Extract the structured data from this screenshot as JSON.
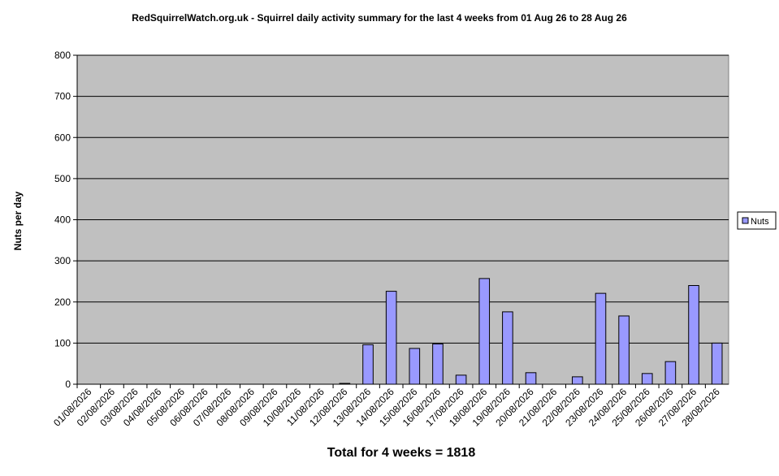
{
  "chart_data": {
    "type": "bar",
    "title": "RedSquirrelWatch.org.uk - Squirrel daily activity summary for the last 4 weeks from 01 Aug 26 to 28 Aug 26",
    "y_label": "Nuts per day",
    "footer": "Total for 4 weeks = 1818",
    "categories": [
      "01/08/2026",
      "02/08/2026",
      "03/08/2026",
      "04/08/2026",
      "05/08/2026",
      "06/08/2026",
      "07/08/2026",
      "08/08/2026",
      "09/08/2026",
      "10/08/2026",
      "11/08/2026",
      "12/08/2026",
      "13/08/2026",
      "14/08/2026",
      "15/08/2026",
      "16/08/2026",
      "17/08/2026",
      "18/08/2026",
      "19/08/2026",
      "20/08/2026",
      "21/08/2026",
      "22/08/2026",
      "23/08/2026",
      "24/08/2026",
      "25/08/2026",
      "26/08/2026",
      "27/08/2026",
      "28/08/2026"
    ],
    "series": [
      {
        "name": "Nuts",
        "color": "#9999ff",
        "values": [
          0,
          0,
          0,
          0,
          0,
          0,
          0,
          0,
          0,
          0,
          0,
          2,
          96,
          226,
          87,
          98,
          22,
          257,
          176,
          28,
          0,
          18,
          221,
          166,
          26,
          55,
          240,
          100
        ]
      }
    ],
    "ylim": [
      0,
      800
    ],
    "yticks": [
      0,
      100,
      200,
      300,
      400,
      500,
      600,
      700,
      800
    ],
    "grid": true,
    "legend": "right"
  }
}
